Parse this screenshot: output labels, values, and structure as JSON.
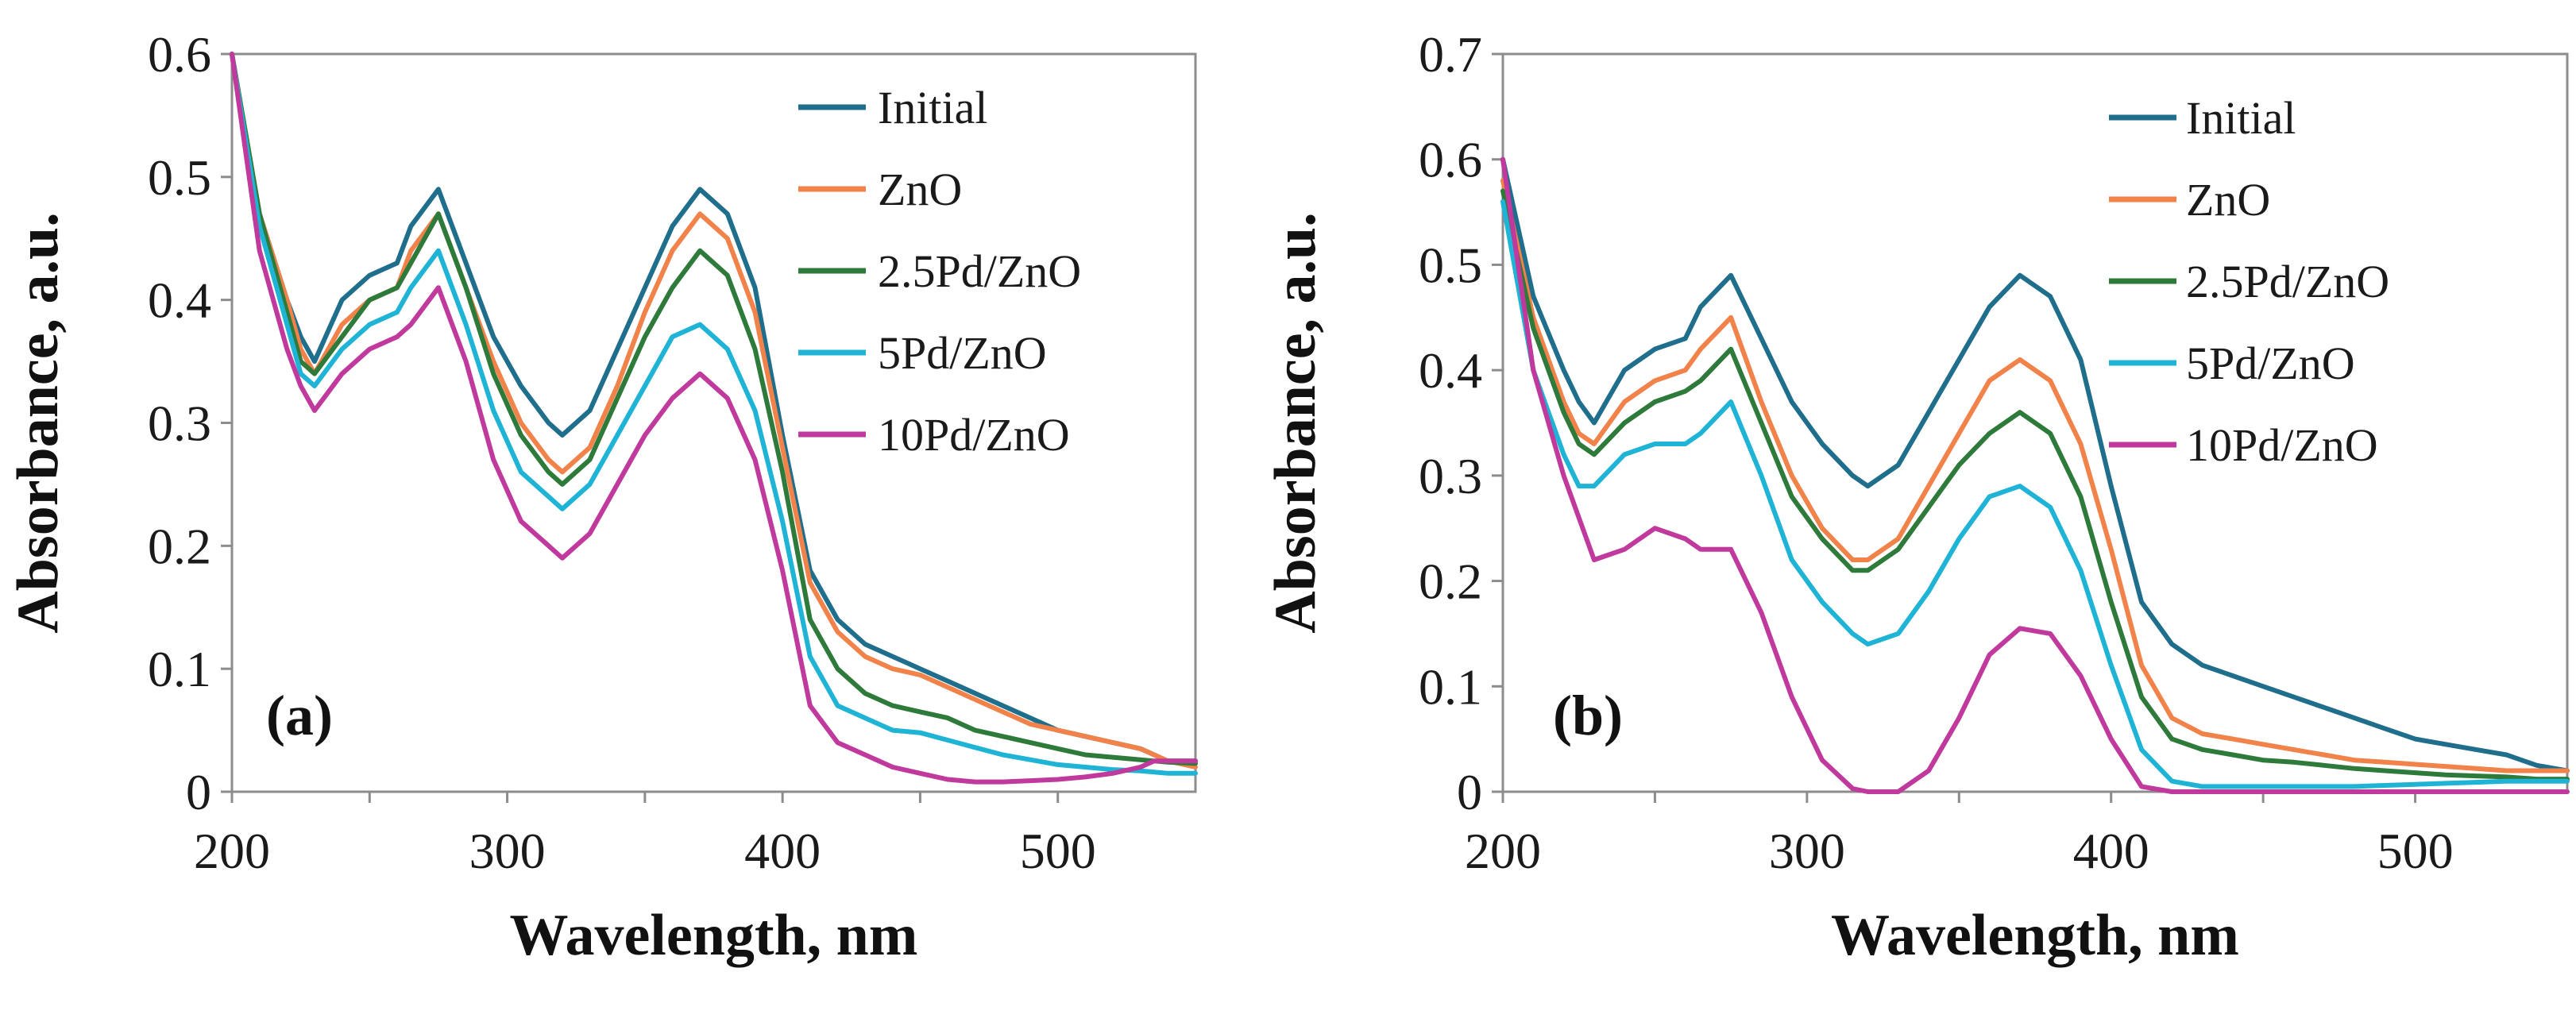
{
  "chart_data": [
    {
      "type": "line",
      "panel_label": "(a)",
      "xlabel": "Wavelength, nm",
      "ylabel": "Absorbance, a.u.",
      "xlim": [
        200,
        550
      ],
      "ylim": [
        0,
        0.6
      ],
      "xticks": [
        200,
        300,
        400,
        500
      ],
      "xtick_labels": [
        "200",
        "300",
        "400",
        "500"
      ],
      "yticks": [
        0,
        0.1,
        0.2,
        0.3,
        0.4,
        0.5,
        0.6
      ],
      "ytick_labels": [
        "0",
        "0.1",
        "0.2",
        "0.3",
        "0.4",
        "0.5",
        "0.6"
      ],
      "grid": false,
      "legend_position": "top-right",
      "x": [
        200,
        210,
        220,
        225,
        230,
        240,
        250,
        260,
        265,
        275,
        285,
        295,
        305,
        315,
        320,
        330,
        340,
        350,
        360,
        370,
        380,
        390,
        400,
        410,
        420,
        430,
        440,
        450,
        460,
        470,
        480,
        490,
        500,
        510,
        520,
        530,
        535,
        540,
        550
      ],
      "series": [
        {
          "name": "Initial",
          "color": "#1f6e8c",
          "values": [
            0.6,
            0.47,
            0.4,
            0.37,
            0.35,
            0.4,
            0.42,
            0.43,
            0.46,
            0.49,
            0.43,
            0.37,
            0.33,
            0.3,
            0.29,
            0.31,
            0.36,
            0.41,
            0.46,
            0.49,
            0.47,
            0.41,
            0.29,
            0.18,
            0.14,
            0.12,
            0.11,
            0.1,
            0.09,
            0.08,
            0.07,
            0.06,
            0.05,
            0.045,
            0.04,
            0.035,
            0.03,
            0.025,
            0.025
          ]
        },
        {
          "name": "ZnO",
          "color": "#f0824a",
          "values": [
            0.6,
            0.47,
            0.4,
            0.36,
            0.34,
            0.38,
            0.4,
            0.41,
            0.44,
            0.47,
            0.41,
            0.35,
            0.3,
            0.27,
            0.26,
            0.28,
            0.33,
            0.39,
            0.44,
            0.47,
            0.45,
            0.39,
            0.28,
            0.17,
            0.13,
            0.11,
            0.1,
            0.095,
            0.085,
            0.075,
            0.065,
            0.055,
            0.05,
            0.045,
            0.04,
            0.035,
            0.03,
            0.025,
            0.02
          ]
        },
        {
          "name": "2.5Pd/ZnO",
          "color": "#2e7a3a",
          "values": [
            0.6,
            0.47,
            0.39,
            0.35,
            0.34,
            0.37,
            0.4,
            0.41,
            0.43,
            0.47,
            0.41,
            0.34,
            0.29,
            0.26,
            0.25,
            0.27,
            0.32,
            0.37,
            0.41,
            0.44,
            0.42,
            0.36,
            0.26,
            0.14,
            0.1,
            0.08,
            0.07,
            0.065,
            0.06,
            0.05,
            0.045,
            0.04,
            0.035,
            0.03,
            0.028,
            0.026,
            0.025,
            0.024,
            0.023
          ]
        },
        {
          "name": "5Pd/ZnO",
          "color": "#1fb3d6",
          "values": [
            0.6,
            0.46,
            0.38,
            0.34,
            0.33,
            0.36,
            0.38,
            0.39,
            0.41,
            0.44,
            0.38,
            0.31,
            0.26,
            0.24,
            0.23,
            0.25,
            0.29,
            0.33,
            0.37,
            0.38,
            0.36,
            0.31,
            0.22,
            0.11,
            0.07,
            0.06,
            0.05,
            0.048,
            0.042,
            0.036,
            0.03,
            0.026,
            0.022,
            0.02,
            0.018,
            0.017,
            0.016,
            0.015,
            0.015
          ]
        },
        {
          "name": "10Pd/ZnO",
          "color": "#c0399c",
          "values": [
            0.6,
            0.44,
            0.36,
            0.33,
            0.31,
            0.34,
            0.36,
            0.37,
            0.38,
            0.41,
            0.35,
            0.27,
            0.22,
            0.2,
            0.19,
            0.21,
            0.25,
            0.29,
            0.32,
            0.34,
            0.32,
            0.27,
            0.18,
            0.07,
            0.04,
            0.03,
            0.02,
            0.015,
            0.01,
            0.008,
            0.008,
            0.009,
            0.01,
            0.012,
            0.015,
            0.02,
            0.025,
            0.025,
            0.025
          ]
        }
      ]
    },
    {
      "type": "line",
      "panel_label": "(b)",
      "xlabel": "Wavelength, nm",
      "ylabel": "Absorbance, a.u.",
      "xlim": [
        200,
        550
      ],
      "ylim": [
        0,
        0.7
      ],
      "xticks": [
        200,
        300,
        400,
        500
      ],
      "xtick_labels": [
        "200",
        "300",
        "400",
        "500"
      ],
      "yticks": [
        0,
        0.1,
        0.2,
        0.3,
        0.4,
        0.5,
        0.6,
        0.7
      ],
      "ytick_labels": [
        "0",
        "0.1",
        "0.2",
        "0.3",
        "0.4",
        "0.5",
        "0.6",
        "0.7"
      ],
      "grid": false,
      "legend_position": "top-right",
      "x": [
        200,
        210,
        220,
        225,
        230,
        240,
        250,
        260,
        265,
        275,
        285,
        295,
        305,
        315,
        320,
        330,
        340,
        350,
        360,
        370,
        380,
        390,
        400,
        410,
        420,
        430,
        440,
        450,
        460,
        470,
        480,
        490,
        500,
        510,
        520,
        530,
        535,
        540,
        550
      ],
      "series": [
        {
          "name": "Initial",
          "color": "#1f6e8c",
          "values": [
            0.6,
            0.47,
            0.4,
            0.37,
            0.35,
            0.4,
            0.42,
            0.43,
            0.46,
            0.49,
            0.43,
            0.37,
            0.33,
            0.3,
            0.29,
            0.31,
            0.36,
            0.41,
            0.46,
            0.49,
            0.47,
            0.41,
            0.29,
            0.18,
            0.14,
            0.12,
            0.11,
            0.1,
            0.09,
            0.08,
            0.07,
            0.06,
            0.05,
            0.045,
            0.04,
            0.035,
            0.03,
            0.025,
            0.02
          ]
        },
        {
          "name": "ZnO",
          "color": "#f0824a",
          "values": [
            0.58,
            0.45,
            0.37,
            0.34,
            0.33,
            0.37,
            0.39,
            0.4,
            0.42,
            0.45,
            0.37,
            0.3,
            0.25,
            0.22,
            0.22,
            0.24,
            0.29,
            0.34,
            0.39,
            0.41,
            0.39,
            0.33,
            0.23,
            0.12,
            0.07,
            0.055,
            0.05,
            0.045,
            0.04,
            0.035,
            0.03,
            0.028,
            0.026,
            0.024,
            0.022,
            0.02,
            0.02,
            0.02,
            0.02
          ]
        },
        {
          "name": "2.5Pd/ZnO",
          "color": "#2e7a3a",
          "values": [
            0.57,
            0.44,
            0.36,
            0.33,
            0.32,
            0.35,
            0.37,
            0.38,
            0.39,
            0.42,
            0.35,
            0.28,
            0.24,
            0.21,
            0.21,
            0.23,
            0.27,
            0.31,
            0.34,
            0.36,
            0.34,
            0.28,
            0.18,
            0.09,
            0.05,
            0.04,
            0.035,
            0.03,
            0.028,
            0.025,
            0.022,
            0.02,
            0.018,
            0.016,
            0.015,
            0.014,
            0.013,
            0.012,
            0.012
          ]
        },
        {
          "name": "5Pd/ZnO",
          "color": "#1fb3d6",
          "values": [
            0.56,
            0.4,
            0.32,
            0.29,
            0.29,
            0.32,
            0.33,
            0.33,
            0.34,
            0.37,
            0.3,
            0.22,
            0.18,
            0.15,
            0.14,
            0.15,
            0.19,
            0.24,
            0.28,
            0.29,
            0.27,
            0.21,
            0.12,
            0.04,
            0.01,
            0.005,
            0.005,
            0.005,
            0.005,
            0.005,
            0.005,
            0.006,
            0.007,
            0.008,
            0.009,
            0.01,
            0.01,
            0.01,
            0.01
          ]
        },
        {
          "name": "10Pd/ZnO",
          "color": "#c0399c",
          "values": [
            0.6,
            0.4,
            0.3,
            0.26,
            0.22,
            0.23,
            0.25,
            0.24,
            0.23,
            0.23,
            0.17,
            0.09,
            0.03,
            0.003,
            0.0,
            0.0,
            0.02,
            0.07,
            0.13,
            0.155,
            0.15,
            0.11,
            0.05,
            0.005,
            0.0,
            0.0,
            0.0,
            0.0,
            0.0,
            0.0,
            0.0,
            0.0,
            0.0,
            0.0,
            0.0,
            0.0,
            0.0,
            0.0,
            0.0
          ]
        }
      ]
    }
  ]
}
